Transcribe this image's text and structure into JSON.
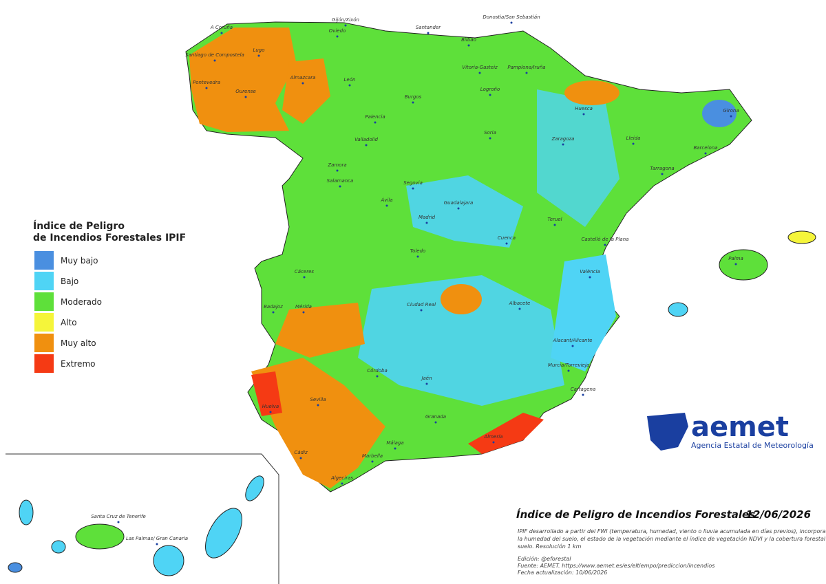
{
  "legend": {
    "title": [
      "Índice de Peligro",
      "de Incendios Forestales IPIF"
    ],
    "items": [
      {
        "label": "Muy bajo",
        "color": "#4a8fe0"
      },
      {
        "label": "Bajo",
        "color": "#4fd4f5"
      },
      {
        "label": "Moderado",
        "color": "#5ee03a"
      },
      {
        "label": "Alto",
        "color": "#f5f53a"
      },
      {
        "label": "Muy alto",
        "color": "#f0900f"
      },
      {
        "label": "Extremo",
        "color": "#f53a14"
      }
    ]
  },
  "cities": [
    "A Coruña",
    "Gijón/Xixón",
    "Oviedo",
    "Santander",
    "Donostia/San Sebastián",
    "Bilbao",
    "Lugo",
    "Santiago de Compostela",
    "Vitoria-Gasteiz",
    "Pamplona/Iruña",
    "Pontevedra",
    "Ourense",
    "Almazcara",
    "León",
    "Logroño",
    "Burgos",
    "Huesca",
    "Girona",
    "Palencia",
    "Soria",
    "Lleida",
    "Valladolid",
    "Zaragoza",
    "Barcelona",
    "Zamora",
    "Tarragona",
    "Salamanca",
    "Segovia",
    "Ávila",
    "Guadalajara",
    "Madrid",
    "Teruel",
    "Castelló de la Plana",
    "Cuenca",
    "Palma",
    "Toledo",
    "Cáceres",
    "València",
    "Ciudad Real",
    "Albacete",
    "Badajoz",
    "Mérida",
    "Alacant/Alicante",
    "Córdoba",
    "Jaén",
    "Murcia/Torrevieja",
    "Cartagena",
    "Sevilla",
    "Huelva",
    "Granada",
    "Almería",
    "Málaga",
    "Marbella",
    "Cádiz",
    "Algeciras",
    "Santa Cruz de Tenerife",
    "Las Palmas/ Gran Canaria"
  ],
  "title": "Índice de Peligro de Incendios Forestales",
  "date": "12/06/2026",
  "description": [
    "IPIF desarrollado a partir del FWI (temperatura, humedad, viento o lluvia acumulada en días previos), incorporando",
    "la humedad del suelo, el estado de la vegetación mediante el índice de vegetación NDVI y la cobertura forestal del",
    "suelo. Resolución 1 km"
  ],
  "edition": "Edición: @eforestal",
  "source": "Fuente: AEMET. https://www.aemet.es/es/eltiempo/prediccion/incendios",
  "updated": "Fecha actualización: 10/06/2026",
  "logo": {
    "name": "aemet",
    "subtitle": "Agencia Estatal de Meteorología"
  }
}
